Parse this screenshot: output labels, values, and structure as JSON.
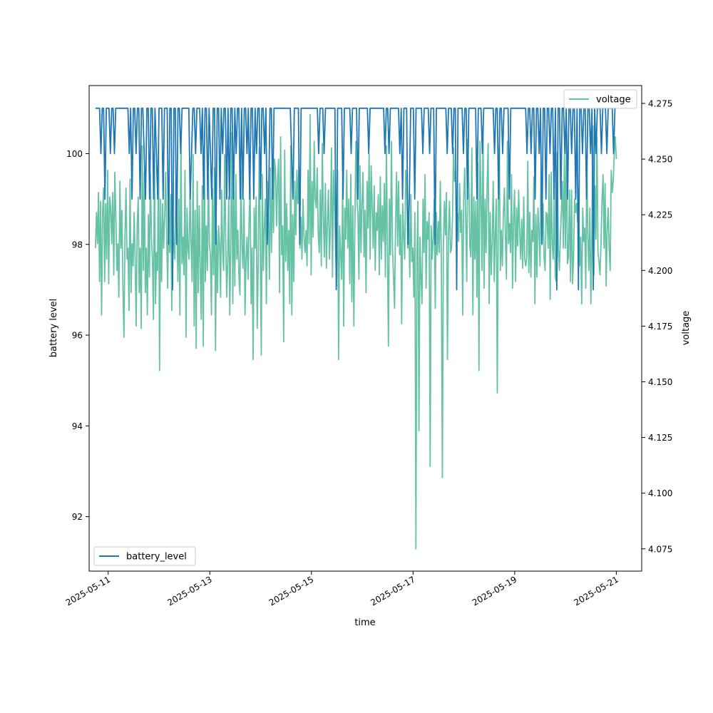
{
  "chart_data": {
    "type": "line",
    "xlabel": "time",
    "ylabel_left": "battery level",
    "ylabel_right": "voltage",
    "x_tick_labels": [
      "2025-05-11",
      "2025-05-13",
      "2025-05-15",
      "2025-05-17",
      "2025-05-19",
      "2025-05-21"
    ],
    "xlim": [
      "2025-05-10 15:00",
      "2025-05-21 12:00"
    ],
    "ylim_left": [
      90.8,
      101.5
    ],
    "yticks_left": [
      92,
      94,
      96,
      98,
      100
    ],
    "ylim_right": [
      4.065,
      4.283
    ],
    "yticks_right": [
      4.075,
      4.1,
      4.125,
      4.15,
      4.175,
      4.2,
      4.225,
      4.25,
      4.275
    ],
    "grid": false,
    "series": [
      {
        "name": "battery_level",
        "axis": "left",
        "color": "#1f77b4",
        "legend_position": "lower-left",
        "x_start": "2025-05-10 18:00",
        "x_end": "2025-05-21 00:00",
        "values": [
          101,
          101,
          101,
          101,
          100,
          101,
          101,
          99,
          101,
          101,
          101,
          100,
          101,
          101,
          100,
          101,
          101,
          101,
          101,
          101,
          101,
          101,
          101,
          101,
          101,
          100,
          101,
          99,
          101,
          101,
          100,
          101,
          101,
          99,
          101,
          101,
          100,
          99,
          101,
          101,
          99,
          101,
          101,
          99,
          101,
          100,
          99,
          101,
          101,
          101,
          99,
          101,
          101,
          101,
          98,
          101,
          101,
          97,
          101,
          101,
          98,
          101,
          101,
          100,
          101,
          101,
          101,
          101,
          101,
          101,
          99,
          100,
          101,
          101,
          100,
          101,
          101,
          101,
          100,
          101,
          99,
          101,
          101,
          99,
          101,
          100,
          99,
          101,
          101,
          98,
          101,
          101,
          99,
          101,
          100,
          101,
          101,
          99,
          101,
          99,
          101,
          101,
          99,
          101,
          100,
          101,
          101,
          99,
          101,
          99,
          101,
          101,
          100,
          101,
          99,
          101,
          101,
          99,
          101,
          100,
          101,
          101,
          99,
          101,
          101,
          100,
          101,
          98,
          99,
          101,
          101,
          99,
          101,
          101,
          101,
          101,
          101,
          101,
          101,
          101,
          101,
          101,
          101,
          101,
          101,
          100,
          99,
          101,
          101,
          101,
          101,
          98,
          101,
          101,
          101,
          101,
          101,
          101,
          101,
          101,
          101,
          101,
          101,
          101,
          101,
          100,
          101,
          101,
          101,
          100,
          101,
          101,
          101,
          101,
          101,
          101,
          101,
          101,
          97,
          101,
          101,
          101,
          101,
          99,
          101,
          101,
          101,
          101,
          101,
          100,
          101,
          101,
          101,
          101,
          99,
          101,
          101,
          101,
          101,
          101,
          101,
          101,
          100,
          101,
          101,
          101,
          101,
          101,
          101,
          101,
          101,
          101,
          101,
          101,
          100,
          101,
          101,
          100,
          101,
          101,
          101,
          101,
          101,
          101,
          101,
          100,
          101,
          99,
          101,
          101,
          101,
          98,
          99,
          101,
          101,
          101,
          99,
          101,
          101,
          101,
          101,
          101,
          100,
          101,
          101,
          101,
          101,
          100,
          101,
          101,
          101,
          98,
          101,
          101,
          101,
          101,
          101,
          101,
          101,
          101,
          100,
          101,
          101,
          101,
          100,
          101,
          101,
          97,
          101,
          101,
          101,
          101,
          100,
          101,
          101,
          99,
          101,
          101,
          101,
          101,
          101,
          101,
          99,
          101,
          101,
          101,
          100,
          101,
          101,
          101,
          101,
          101,
          101,
          101,
          101,
          100,
          101,
          101,
          99,
          101,
          101,
          100,
          101,
          101,
          101,
          101,
          99,
          101,
          101,
          101,
          101,
          101,
          101,
          101,
          101,
          101,
          101,
          101,
          101,
          100,
          101,
          101,
          100,
          101,
          101,
          99,
          101,
          101,
          100,
          101,
          98,
          101,
          101,
          99,
          101,
          101,
          100,
          101,
          101,
          99,
          101,
          97,
          101,
          101,
          99,
          101,
          101,
          100,
          101,
          99,
          101,
          101,
          100,
          101,
          101,
          99,
          101,
          97,
          101,
          101,
          100,
          101,
          101,
          99,
          101,
          101,
          100,
          101,
          97,
          101,
          100,
          101,
          101,
          101,
          100,
          101,
          101,
          101,
          100,
          101,
          101,
          101,
          101,
          100,
          101,
          101
        ]
      },
      {
        "name": "voltage",
        "axis": "right",
        "color": "#66c2a5",
        "legend_position": "upper-right",
        "x_start": "2025-05-10 18:00",
        "x_end": "2025-05-21 00:00",
        "values": [
          4.21,
          4.226,
          4.212,
          4.235,
          4.195,
          4.231,
          4.18,
          4.226,
          4.237,
          4.195,
          4.23,
          4.205,
          4.245,
          4.194,
          4.233,
          4.228,
          4.212,
          4.235,
          4.198,
          4.244,
          4.225,
          4.2,
          4.212,
          4.188,
          4.24,
          4.21,
          4.227,
          4.192,
          4.17,
          4.215,
          4.237,
          4.205,
          4.21,
          4.182,
          4.241,
          4.19,
          4.212,
          4.202,
          4.226,
          4.205,
          4.175,
          4.22,
          4.233,
          4.19,
          4.21,
          4.174,
          4.256,
          4.2,
          4.244,
          4.19,
          4.21,
          4.18,
          4.225,
          4.197,
          4.244,
          4.215,
          4.205,
          4.178,
          4.252,
          4.185,
          4.208,
          4.2,
          4.257,
          4.155,
          4.232,
          4.195,
          4.23,
          4.21,
          4.224,
          4.244,
          4.215,
          4.192,
          4.23,
          4.208,
          4.234,
          4.182,
          4.23,
          4.212,
          4.205,
          4.24,
          4.224,
          4.195,
          4.232,
          4.18,
          4.26,
          4.203,
          4.215,
          4.198,
          4.245,
          4.17,
          4.228,
          4.21,
          4.205,
          4.236,
          4.212,
          4.195,
          4.252,
          4.175,
          4.227,
          4.165,
          4.24,
          4.19,
          4.229,
          4.2,
          4.178,
          4.238,
          4.166,
          4.256,
          4.195,
          4.22,
          4.2,
          4.244,
          4.212,
          4.207,
          4.18,
          4.237,
          4.198,
          4.246,
          4.164,
          4.218,
          4.19,
          4.22,
          4.212,
          4.188,
          4.236,
          4.209,
          4.2,
          4.252,
          4.215,
          4.188,
          4.204,
          4.233,
          4.18,
          4.212,
          4.262,
          4.185,
          4.238,
          4.193,
          4.243,
          4.205,
          4.218,
          4.198,
          4.189,
          4.246,
          4.211,
          4.201,
          4.232,
          4.18,
          4.205,
          4.215,
          4.196,
          4.222,
          4.238,
          4.185,
          4.21,
          4.16,
          4.228,
          4.21,
          4.233,
          4.174,
          4.203,
          4.255,
          4.212,
          4.162,
          4.243,
          4.2,
          4.22,
          4.232,
          4.185,
          4.24,
          4.223,
          4.196,
          4.246,
          4.208,
          4.24,
          4.217,
          4.25,
          4.245,
          4.22,
          4.24,
          4.25,
          4.19,
          4.26,
          4.207,
          4.22,
          4.168,
          4.254,
          4.204,
          4.23,
          4.2,
          4.218,
          4.185,
          4.256,
          4.18,
          4.225,
          4.195,
          4.24,
          4.216,
          4.245,
          4.23,
          4.248,
          4.21,
          4.224,
          4.205,
          4.232,
          4.215,
          4.208,
          4.218,
          4.202,
          4.245,
          4.212,
          4.27,
          4.198,
          4.24,
          4.215,
          4.258,
          4.232,
          4.228,
          4.246,
          4.216,
          4.208,
          4.236,
          4.202,
          4.257,
          4.224,
          4.206,
          4.239,
          4.201,
          4.221,
          4.236,
          4.205,
          4.22,
          4.255,
          4.197,
          4.245,
          4.23,
          4.21,
          4.193,
          4.245,
          4.16,
          4.22,
          4.208,
          4.196,
          4.24,
          4.175,
          4.228,
          4.214,
          4.245,
          4.21,
          4.232,
          4.194,
          4.243,
          4.186,
          4.229,
          4.175,
          4.22,
          4.258,
          4.232,
          4.225,
          4.196,
          4.247,
          4.208,
          4.23,
          4.244,
          4.206,
          4.227,
          4.19,
          4.24,
          4.219,
          4.252,
          4.205,
          4.247,
          4.23,
          4.21,
          4.238,
          4.2,
          4.226,
          4.218,
          4.234,
          4.198,
          4.242,
          4.205,
          4.229,
          4.213,
          4.239,
          4.197,
          4.256,
          4.21,
          4.166,
          4.232,
          4.207,
          4.258,
          4.21,
          4.197,
          4.183,
          4.221,
          4.244,
          4.211,
          4.24,
          4.207,
          4.225,
          4.176,
          4.23,
          4.216,
          4.205,
          4.245,
          4.236,
          4.21,
          4.222,
          4.197,
          4.234,
          4.204,
          4.21,
          4.188,
          4.226,
          4.075,
          4.206,
          4.231,
          4.128,
          4.215,
          4.197,
          4.185,
          4.232,
          4.208,
          4.243,
          4.192,
          4.222,
          4.214,
          4.226,
          4.112,
          4.22,
          4.205,
          4.215,
          4.232,
          4.183,
          4.226,
          4.207,
          4.222,
          4.208,
          4.24,
          4.205,
          4.107,
          4.21,
          4.231,
          4.216,
          4.235,
          4.16,
          4.216,
          4.231,
          4.208,
          4.21,
          4.224,
          4.255,
          4.24,
          4.244,
          4.218,
          4.226,
          4.213,
          4.239,
          4.217,
          4.227,
          4.18,
          4.232,
          4.246,
          4.223,
          4.195,
          4.259,
          4.24,
          4.211,
          4.206,
          4.255,
          4.18,
          4.233,
          4.205,
          4.231,
          4.188,
          4.248,
          4.155,
          4.258,
          4.234,
          4.2,
          4.265,
          4.192,
          4.232,
          4.208,
          4.238,
          4.257,
          4.185,
          4.226,
          4.198,
          4.213,
          4.24,
          4.195,
          4.216,
          4.232,
          4.145,
          4.228,
          4.256,
          4.2,
          4.218,
          4.202,
          4.226,
          4.237,
          4.215,
          4.196,
          4.258,
          4.212,
          4.221,
          4.208,
          4.243,
          4.192,
          4.223,
          4.236,
          4.195,
          4.228,
          4.211,
          4.236,
          4.218,
          4.205,
          4.223,
          4.201,
          4.233,
          4.205,
          4.202,
          4.206,
          4.249,
          4.199,
          4.226,
          4.197,
          4.218,
          4.213,
          4.242,
          4.185,
          4.225,
          4.197,
          4.228,
          4.218,
          4.202,
          4.246,
          4.212,
          4.23,
          4.206,
          4.2,
          4.226,
          4.225,
          4.21,
          4.243,
          4.187,
          4.244,
          4.212,
          4.205,
          4.235,
          4.197,
          4.195,
          4.253,
          4.21,
          4.2,
          4.215,
          4.226,
          4.24,
          4.21,
          4.252,
          4.21,
          4.26,
          4.203,
          4.206,
          4.236,
          4.195,
          4.236,
          4.194,
          4.206,
          4.232,
          4.226,
          4.23,
          4.222,
          4.237,
          4.202,
          4.215,
          4.185,
          4.228,
          4.213,
          4.219,
          4.192,
          4.25,
          4.215,
          4.2,
          4.228,
          4.185,
          4.215,
          4.265,
          4.198,
          4.238,
          4.214,
          4.26,
          4.208,
          4.204,
          4.198,
          4.213,
          4.232,
          4.243,
          4.21,
          4.239,
          4.193,
          4.218,
          4.228,
          4.21,
          4.2,
          4.245,
          4.235,
          4.24,
          4.253,
          4.26,
          4.25
        ]
      }
    ]
  }
}
